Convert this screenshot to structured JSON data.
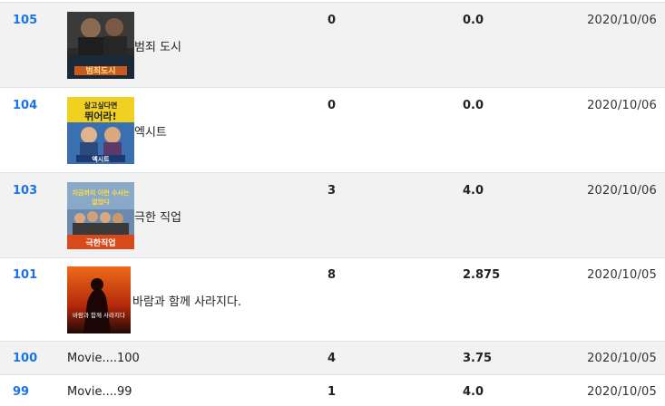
{
  "rows": [
    {
      "id": "105",
      "title": "범죄 도시",
      "count": "0",
      "rating": "0.0",
      "date": "2020/10/06",
      "poster_text": "범죄도시",
      "poster_color": "#c85a1e"
    },
    {
      "id": "104",
      "title": "엑시트",
      "count": "0",
      "rating": "0.0",
      "date": "2020/10/06",
      "poster_text": "뛰어라!",
      "poster_color": "#e8c020"
    },
    {
      "id": "103",
      "title": "극한 직업",
      "count": "3",
      "rating": "4.0",
      "date": "2020/10/06",
      "poster_text": "극한직업",
      "poster_color": "#d84a1a"
    },
    {
      "id": "101",
      "title": "바람과 함께 사라지다.",
      "count": "8",
      "rating": "2.875",
      "date": "2020/10/05",
      "poster_text": "바람과 함께 사라지다",
      "poster_color": "#b0280a"
    },
    {
      "id": "100",
      "title": "Movie....100",
      "count": "4",
      "rating": "3.75",
      "date": "2020/10/05"
    },
    {
      "id": "99",
      "title": "Movie....99",
      "count": "1",
      "rating": "4.0",
      "date": "2020/10/05"
    }
  ]
}
